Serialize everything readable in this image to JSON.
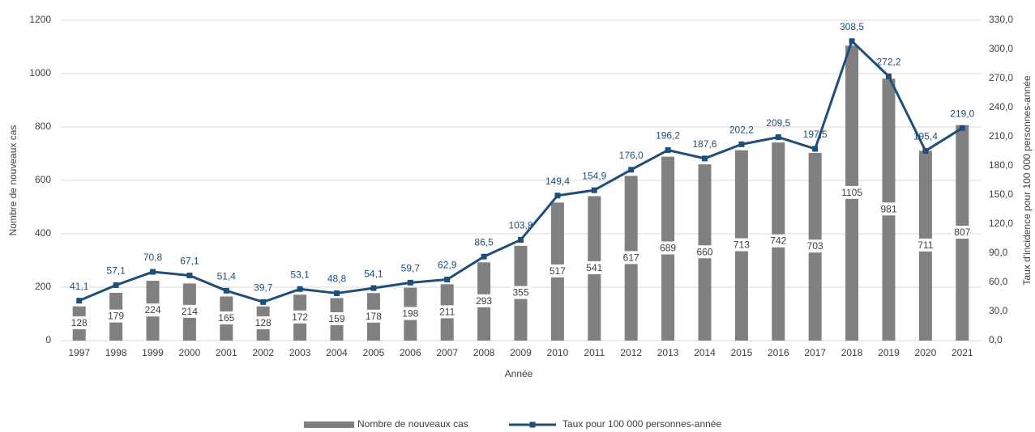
{
  "chart_data": {
    "type": "bar-line",
    "x_label": "Année",
    "y_label": "Nombre de nouveaux cas",
    "y2_label": "Taux d'incidence pour 100 000 personnes-année",
    "categories": [
      "1997",
      "1998",
      "1999",
      "2000",
      "2001",
      "2002",
      "2003",
      "2004",
      "2005",
      "2006",
      "2007",
      "2008",
      "2009",
      "2010",
      "2011",
      "2012",
      "2013",
      "2014",
      "2015",
      "2016",
      "2017",
      "2018",
      "2019",
      "2020",
      "2021"
    ],
    "series": [
      {
        "name": "Nombre de nouveaux cas",
        "type": "bar",
        "color": "#808080",
        "values": [
          128,
          179,
          224,
          214,
          165,
          128,
          172,
          159,
          178,
          198,
          211,
          293,
          355,
          517,
          541,
          617,
          689,
          660,
          713,
          742,
          703,
          1105,
          981,
          711,
          807
        ]
      },
      {
        "name": "Taux pour 100 000 personnes-année",
        "type": "line",
        "axis": "y2",
        "color": "#1f4e79",
        "values": [
          41.1,
          57.1,
          70.8,
          67.1,
          51.4,
          39.7,
          53.1,
          48.8,
          54.1,
          59.7,
          62.9,
          86.5,
          103.8,
          149.4,
          154.9,
          176.0,
          196.2,
          187.6,
          202.2,
          209.5,
          197.5,
          308.5,
          272.2,
          195.4,
          219.0
        ],
        "value_labels": [
          "41,1",
          "57,1",
          "70,8",
          "67,1",
          "51,4",
          "39,7",
          "53,1",
          "48,8",
          "54,1",
          "59,7",
          "62,9",
          "86,5",
          "103,8",
          "149,4",
          "154,9",
          "176,0",
          "196,2",
          "187,6",
          "202,2",
          "209,5",
          "197,5",
          "308,5",
          "272,2",
          "195,4",
          "219,0"
        ]
      }
    ],
    "ylim": [
      0,
      1200
    ],
    "yticks": [
      0,
      200,
      400,
      600,
      800,
      1000,
      1200
    ],
    "y2lim": [
      0,
      330
    ],
    "y2ticks": [
      {
        "value": 0,
        "label": "0,0"
      },
      {
        "value": 30,
        "label": "30,0"
      },
      {
        "value": 60,
        "label": "60,0"
      },
      {
        "value": 90,
        "label": "90,0"
      },
      {
        "value": 120,
        "label": "120,0"
      },
      {
        "value": 150,
        "label": "150,0"
      },
      {
        "value": 180,
        "label": "180,0"
      },
      {
        "value": 210,
        "label": "210,0"
      },
      {
        "value": 240,
        "label": "240,0"
      },
      {
        "value": 270,
        "label": "270,0"
      },
      {
        "value": 300,
        "label": "300,0"
      },
      {
        "value": 330,
        "label": "330,0"
      }
    ],
    "grid": true,
    "legend": "bottom"
  }
}
